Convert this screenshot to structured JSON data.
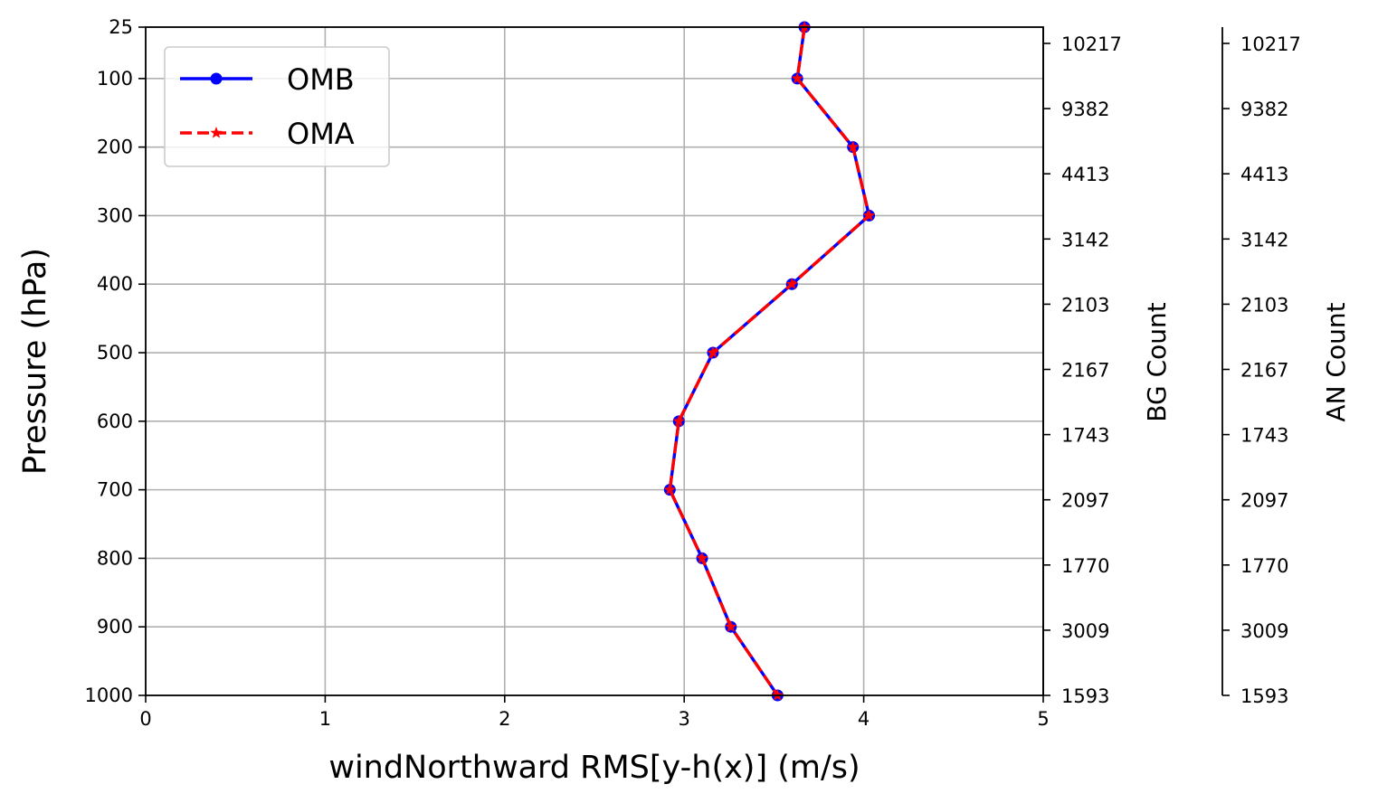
{
  "chart_data": {
    "type": "line",
    "xlabel": "windNorthward RMS[y-h(x)] (m/s)",
    "ylabel": "Pressure (hPa)",
    "xlim": [
      0,
      5
    ],
    "ylim": [
      1000,
      25
    ],
    "x_ticks": [
      "0",
      "1",
      "2",
      "3",
      "4",
      "5"
    ],
    "y_ticks": [
      "25",
      "100",
      "200",
      "300",
      "400",
      "500",
      "600",
      "700",
      "800",
      "900",
      "1000"
    ],
    "grid": true,
    "legend_position": "top-left",
    "levels": [
      25,
      100,
      200,
      300,
      400,
      500,
      600,
      700,
      800,
      900,
      1000
    ],
    "series": [
      {
        "name": "OMB",
        "color": "#0000ff",
        "linestyle": "solid",
        "marker": "circle",
        "values": [
          3.67,
          3.63,
          3.94,
          4.03,
          3.6,
          3.16,
          2.97,
          2.92,
          3.1,
          3.26,
          3.52
        ]
      },
      {
        "name": "OMA",
        "color": "#ff0000",
        "linestyle": "dashed",
        "marker": "star",
        "values": [
          3.67,
          3.63,
          3.94,
          4.03,
          3.6,
          3.16,
          2.97,
          2.92,
          3.1,
          3.26,
          3.52
        ]
      }
    ],
    "secondary_axes": [
      {
        "label": "BG Count",
        "tick_labels": [
          "10217",
          "9382",
          "4413",
          "3142",
          "2103",
          "2167",
          "1743",
          "2097",
          "1770",
          "3009",
          "1593"
        ]
      },
      {
        "label": "AN Count",
        "tick_labels": [
          "10217",
          "9382",
          "4413",
          "3142",
          "2103",
          "2167",
          "1743",
          "2097",
          "1770",
          "3009",
          "1593"
        ]
      }
    ]
  }
}
